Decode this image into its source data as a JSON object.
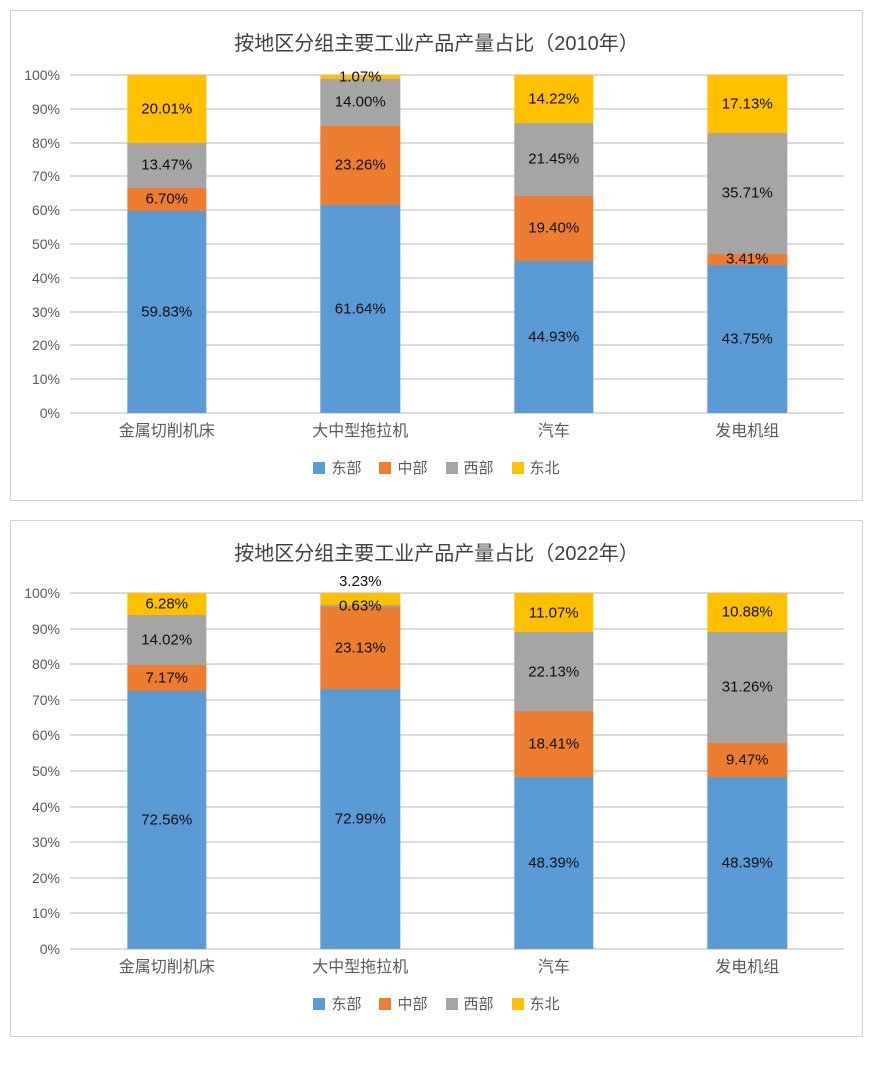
{
  "chart_data": [
    {
      "type": "bar",
      "stacked": true,
      "title": "按地区分组主要工业产品产量占比（2010年）",
      "categories": [
        "金属切削机床",
        "大中型拖拉机",
        "汽车",
        "发电机组"
      ],
      "series": [
        {
          "name": "东部",
          "color": "#5B9BD5",
          "values": [
            59.83,
            61.64,
            44.93,
            43.75
          ],
          "labels": [
            "59.83%",
            "61.64%",
            "44.93%",
            "43.75%"
          ]
        },
        {
          "name": "中部",
          "color": "#ED7D31",
          "values": [
            6.7,
            23.26,
            19.4,
            3.41
          ],
          "labels": [
            "6.70%",
            "23.26%",
            "19.40%",
            "3.41%"
          ]
        },
        {
          "name": "西部",
          "color": "#A5A5A5",
          "values": [
            13.47,
            14.0,
            21.45,
            35.71
          ],
          "labels": [
            "13.47%",
            "14.00%",
            "21.45%",
            "35.71%"
          ]
        },
        {
          "name": "东北",
          "color": "#FFC000",
          "values": [
            20.01,
            1.07,
            14.22,
            17.13
          ],
          "labels": [
            "20.01%",
            "1.07%",
            "14.22%",
            "17.13%"
          ]
        }
      ],
      "y_ticks_top_down": [
        "100%",
        "90%",
        "80%",
        "70%",
        "60%",
        "50%",
        "40%",
        "30%",
        "20%",
        "10%",
        "0%"
      ],
      "ylim": [
        0,
        100
      ],
      "grid": true,
      "legend_position": "bottom",
      "label_overrides": []
    },
    {
      "type": "bar",
      "stacked": true,
      "title": "按地区分组主要工业产品产量占比（2022年）",
      "categories": [
        "金属切削机床",
        "大中型拖拉机",
        "汽车",
        "发电机组"
      ],
      "series": [
        {
          "name": "东部",
          "color": "#5B9BD5",
          "values": [
            72.56,
            72.99,
            48.39,
            48.39
          ],
          "labels": [
            "72.56%",
            "72.99%",
            "48.39%",
            "48.39%"
          ]
        },
        {
          "name": "中部",
          "color": "#ED7D31",
          "values": [
            7.17,
            23.13,
            18.41,
            9.47
          ],
          "labels": [
            "7.17%",
            "23.13%",
            "18.41%",
            "9.47%"
          ]
        },
        {
          "name": "西部",
          "color": "#A5A5A5",
          "values": [
            14.02,
            0.63,
            22.13,
            31.26
          ],
          "labels": [
            "14.02%",
            "0.63%",
            "22.13%",
            "31.26%"
          ]
        },
        {
          "name": "东北",
          "color": "#FFC000",
          "values": [
            6.28,
            3.23,
            11.07,
            10.88
          ],
          "labels": [
            "6.28%",
            "3.23%",
            "11.07%",
            "10.88%"
          ]
        }
      ],
      "y_ticks_top_down": [
        "100%",
        "90%",
        "80%",
        "70%",
        "60%",
        "50%",
        "40%",
        "30%",
        "20%",
        "10%",
        "0%"
      ],
      "ylim": [
        0,
        100
      ],
      "grid": true,
      "legend_position": "bottom",
      "label_overrides": [
        {
          "series_index": 3,
          "category_index": 1,
          "position": "above_plot"
        }
      ]
    }
  ]
}
